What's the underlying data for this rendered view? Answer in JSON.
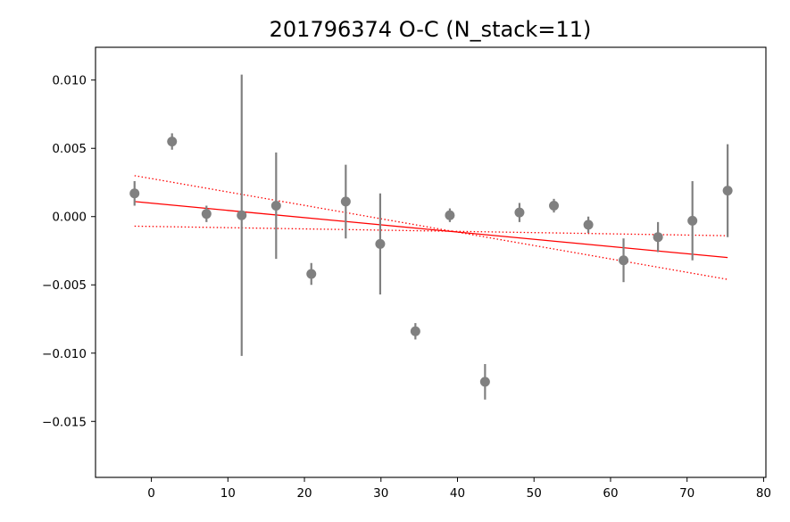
{
  "chart_data": {
    "type": "scatter",
    "title": "201796374 O-C (N_stack=11)",
    "xlabel": "",
    "ylabel": "",
    "xlim": [
      -7.3,
      80.3
    ],
    "ylim": [
      -0.0191,
      0.0124
    ],
    "x_ticks": [
      {
        "value": 0,
        "label": "0"
      },
      {
        "value": 10,
        "label": "10"
      },
      {
        "value": 20,
        "label": "20"
      },
      {
        "value": 30,
        "label": "30"
      },
      {
        "value": 40,
        "label": "40"
      },
      {
        "value": 50,
        "label": "50"
      },
      {
        "value": 60,
        "label": "60"
      },
      {
        "value": 70,
        "label": "70"
      },
      {
        "value": 80,
        "label": "80"
      }
    ],
    "y_ticks": [
      {
        "value": 0.01,
        "label": "0.010"
      },
      {
        "value": 0.005,
        "label": "0.005"
      },
      {
        "value": 0.0,
        "label": "0.000"
      },
      {
        "value": -0.005,
        "label": "−0.005"
      },
      {
        "value": -0.01,
        "label": "−0.010"
      },
      {
        "value": -0.015,
        "label": "−0.015"
      }
    ],
    "grid": false,
    "legend": "none",
    "colors": {
      "points": "#808080",
      "fit": "#ff0000"
    },
    "points": [
      {
        "x": -2.2,
        "y": 0.0017,
        "err": 0.0009
      },
      {
        "x": 2.7,
        "y": 0.0055,
        "err": 0.0006
      },
      {
        "x": 7.2,
        "y": 0.0002,
        "err": 0.0006
      },
      {
        "x": 11.8,
        "y": 0.0001,
        "err": 0.0103
      },
      {
        "x": 16.3,
        "y": 0.0008,
        "err": 0.0039
      },
      {
        "x": 20.9,
        "y": -0.0042,
        "err": 0.0008
      },
      {
        "x": 25.4,
        "y": 0.0011,
        "err": 0.0027
      },
      {
        "x": 29.9,
        "y": -0.002,
        "err": 0.0037
      },
      {
        "x": 34.5,
        "y": -0.0084,
        "err": 0.0006
      },
      {
        "x": 39.0,
        "y": 0.0001,
        "err": 0.0005
      },
      {
        "x": 43.6,
        "y": -0.0121,
        "err": 0.0013
      },
      {
        "x": 48.1,
        "y": 0.0003,
        "err": 0.0007
      },
      {
        "x": 52.6,
        "y": 0.0008,
        "err": 0.0005
      },
      {
        "x": 57.1,
        "y": -0.0006,
        "err": 0.0006
      },
      {
        "x": 61.7,
        "y": -0.0032,
        "err": 0.0016
      },
      {
        "x": 66.2,
        "y": -0.0015,
        "err": 0.0011
      },
      {
        "x": 70.7,
        "y": -0.0003,
        "err": 0.0029
      },
      {
        "x": 75.3,
        "y": 0.0019,
        "err": 0.0034
      }
    ],
    "fit_lines": [
      {
        "style": "solid",
        "x": [
          -2.2,
          75.3
        ],
        "y": [
          0.0011,
          -0.003
        ]
      },
      {
        "style": "dotted",
        "x": [
          -2.2,
          75.3
        ],
        "y": [
          0.003,
          -0.0046
        ]
      },
      {
        "style": "dotted",
        "x": [
          -2.2,
          75.3
        ],
        "y": [
          -0.0007,
          -0.0014
        ]
      }
    ]
  }
}
